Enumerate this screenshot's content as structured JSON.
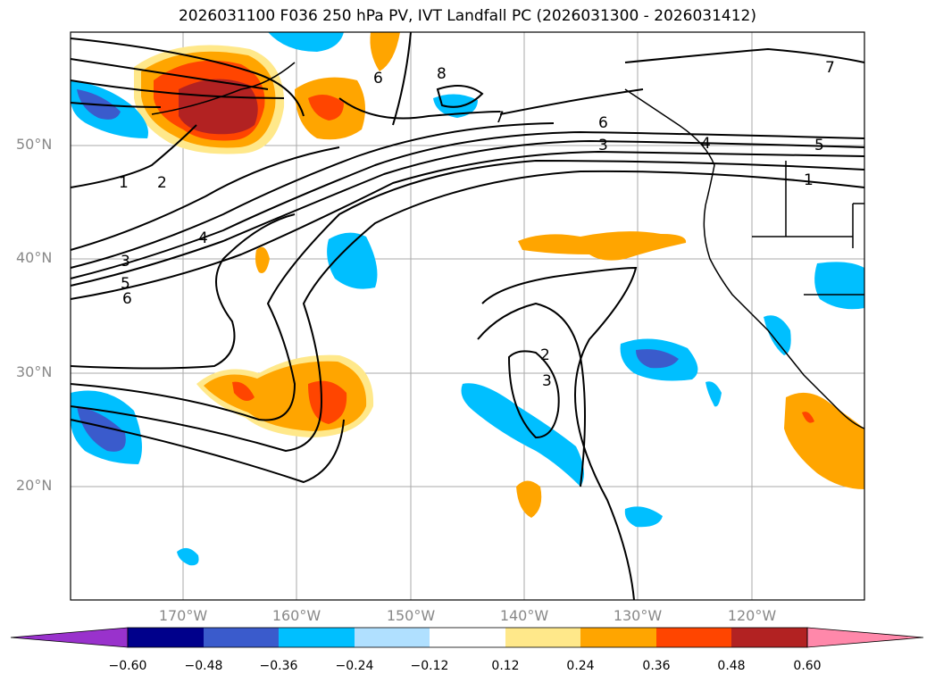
{
  "title": "2026031100 F036 250 hPa PV, IVT Landfall PC (2026031300 - 2026031412)",
  "lat_labels": [
    "50°N",
    "40°N",
    "30°N",
    "20°N"
  ],
  "lon_labels": [
    "170°W",
    "160°W",
    "150°W",
    "140°W",
    "130°W",
    "120°W"
  ],
  "colorbar": {
    "ticks": [
      "−0.60",
      "−0.48",
      "−0.36",
      "−0.24",
      "−0.12",
      "0.12",
      "0.24",
      "0.36",
      "0.48",
      "0.60"
    ],
    "colors": [
      "#9932cc",
      "#00008b",
      "#3a5bcc",
      "#00bfff",
      "#b0e0ff",
      "#ffffff",
      "#ffe88a",
      "#ffa500",
      "#ff4500",
      "#b22222",
      "#ff88aa"
    ]
  },
  "contour_labels": [
    {
      "id": "c1a",
      "text": "1"
    },
    {
      "id": "c2a",
      "text": "2"
    },
    {
      "id": "c3a",
      "text": "3"
    },
    {
      "id": "c4a",
      "text": "4"
    },
    {
      "id": "c5a",
      "text": "5"
    },
    {
      "id": "c6a",
      "text": "6"
    },
    {
      "id": "c7a",
      "text": "7"
    },
    {
      "id": "c8a",
      "text": "8"
    },
    {
      "id": "c6b",
      "text": "6"
    },
    {
      "id": "c6c",
      "text": "6"
    },
    {
      "id": "c3b",
      "text": "3"
    },
    {
      "id": "c4b",
      "text": "4"
    },
    {
      "id": "c5b",
      "text": "5"
    },
    {
      "id": "c1b",
      "text": "1"
    },
    {
      "id": "c7b",
      "text": "7"
    },
    {
      "id": "c2b",
      "text": "2"
    },
    {
      "id": "c3c",
      "text": "3"
    }
  ]
}
